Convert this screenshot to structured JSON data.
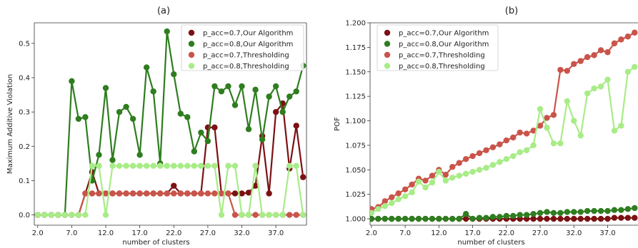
{
  "colors": {
    "dark_red": "#7b1113",
    "dark_green": "#2e7d1f",
    "light_red": "#c9544a",
    "light_green": "#a8ec87"
  },
  "chart_data": [
    {
      "type": "line",
      "title": "(a)",
      "xlabel": "number of clusters",
      "ylabel": "Maximum Additive Violation",
      "xlim": [
        1.5,
        41.5
      ],
      "ylim": [
        -0.03,
        0.56
      ],
      "xticks": [
        "2.0",
        "7.0",
        "12.0",
        "17.0",
        "22.0",
        "27.0",
        "32.0",
        "37.0"
      ],
      "yticks": [
        "0.0",
        "0.1",
        "0.2",
        "0.3",
        "0.4",
        "0.5"
      ],
      "grid": false,
      "legend": "top-right",
      "x": [
        2,
        3,
        4,
        5,
        6,
        7,
        8,
        9,
        10,
        11,
        12,
        13,
        14,
        15,
        16,
        17,
        18,
        19,
        20,
        21,
        22,
        23,
        24,
        25,
        26,
        27,
        28,
        29,
        30,
        31,
        32,
        33,
        34,
        35,
        36,
        37,
        38,
        39,
        40,
        41
      ],
      "series": [
        {
          "name": "p_acc=0.7,Our Algorithm",
          "color": "#7b1113",
          "values": [
            0,
            0,
            0,
            0,
            0,
            0,
            0,
            0.0625,
            0.125,
            0.0625,
            0.0625,
            0.0625,
            0.0625,
            0.0625,
            0.0625,
            0.0625,
            0.0625,
            0.0625,
            0.0625,
            0.0625,
            0.085,
            0.0625,
            0.0625,
            0.0625,
            0.0625,
            0.255,
            0.255,
            0.0625,
            0.0625,
            0.0625,
            0.0625,
            0.065,
            0.085,
            0.23,
            0.0625,
            0.3,
            0.325,
            0.135,
            0.26,
            0.11
          ]
        },
        {
          "name": "p_acc=0.8,Our Algorithm",
          "color": "#2e7d1f",
          "values": [
            0,
            0,
            0,
            0,
            0,
            0.39,
            0.28,
            0.285,
            0.1,
            0.175,
            0.37,
            0.16,
            0.3,
            0.315,
            0.28,
            0.175,
            0.43,
            0.36,
            0.15,
            0.535,
            0.41,
            0.295,
            0.285,
            0.185,
            0.24,
            0.215,
            0.375,
            0.36,
            0.375,
            0.32,
            0.375,
            0.25,
            0.365,
            0.22,
            0.345,
            0.375,
            0.3,
            0.345,
            0.36,
            0.435
          ]
        },
        {
          "name": "p_acc=0.7,Thresholding",
          "color": "#c9544a",
          "values": [
            0,
            0,
            0,
            0,
            0,
            0,
            0,
            0.0625,
            0.0625,
            0.0625,
            0.0625,
            0.0625,
            0.0625,
            0.0625,
            0.0625,
            0.0625,
            0.0625,
            0.0625,
            0.0625,
            0.0625,
            0.0625,
            0.0625,
            0.0625,
            0.0625,
            0.0625,
            0.0625,
            0.0625,
            0.0625,
            0.0625,
            0,
            0,
            0,
            0,
            0,
            0,
            0,
            0,
            0,
            0,
            0
          ]
        },
        {
          "name": "p_acc=0.8,Thresholding",
          "color": "#a8ec87",
          "values": [
            0,
            0,
            0,
            0,
            0,
            0,
            0,
            0,
            0.143,
            0.143,
            0,
            0.143,
            0.143,
            0.143,
            0.143,
            0.143,
            0.143,
            0.143,
            0.143,
            0.143,
            0.143,
            0.143,
            0.143,
            0.143,
            0.143,
            0.143,
            0.143,
            0,
            0.143,
            0.143,
            0,
            0,
            0.143,
            0,
            0,
            0,
            0,
            0.143,
            0.143,
            0
          ]
        }
      ]
    },
    {
      "type": "line",
      "title": "(b)",
      "xlabel": "number of clusters",
      "ylabel": "POF",
      "xlim": [
        1.8,
        41.5
      ],
      "ylim": [
        0.9935,
        1.2
      ],
      "xticks": [
        "2.0",
        "7.0",
        "12.0",
        "17.0",
        "22.0",
        "27.0",
        "32.0",
        "37.0"
      ],
      "yticks": [
        "1.000",
        "1.025",
        "1.050",
        "1.075",
        "1.100",
        "1.125",
        "1.150",
        "1.175",
        "1.200"
      ],
      "grid": false,
      "legend": "top-left",
      "x": [
        2,
        3,
        4,
        5,
        6,
        7,
        8,
        9,
        10,
        11,
        12,
        13,
        14,
        15,
        16,
        17,
        18,
        19,
        20,
        21,
        22,
        23,
        24,
        25,
        26,
        27,
        28,
        29,
        30,
        31,
        32,
        33,
        34,
        35,
        36,
        37,
        38,
        39,
        40,
        41
      ],
      "series": [
        {
          "name": "p_acc=0.7,Our Algorithm",
          "color": "#7b1113",
          "values": [
            1.0,
            1.0,
            1.0,
            1.0,
            1.0,
            1.0,
            1.0,
            1.0,
            1.0,
            1.0,
            1.0,
            1.0,
            1.0,
            1.0,
            1.0,
            1.0,
            1.0,
            1.0,
            1.0,
            1.0,
            1.0,
            1.0,
            1.0,
            1.0,
            1.0,
            1.0,
            1.0,
            1.0,
            1.0,
            1.0,
            1.0,
            1.0,
            1.0,
            1.0,
            1.0,
            1.0,
            1.001,
            1.001,
            1.001,
            1.001
          ]
        },
        {
          "name": "p_acc=0.8,Our Algorithm",
          "color": "#2e7d1f",
          "values": [
            1.0,
            1.0,
            1.0,
            1.0,
            1.0,
            1.0,
            1.0,
            1.0,
            1.0,
            1.0,
            1.0,
            1.0,
            1.0,
            1.0,
            1.005,
            1.0,
            1.001,
            1.001,
            1.002,
            1.002,
            1.003,
            1.003,
            1.004,
            1.004,
            1.005,
            1.006,
            1.007,
            1.006,
            1.006,
            1.007,
            1.007,
            1.007,
            1.008,
            1.008,
            1.008,
            1.008,
            1.009,
            1.009,
            1.01,
            1.011
          ]
        },
        {
          "name": "p_acc=0.7,Thresholding",
          "color": "#c9544a",
          "values": [
            1.01,
            1.012,
            1.018,
            1.022,
            1.026,
            1.03,
            1.035,
            1.041,
            1.039,
            1.044,
            1.05,
            1.045,
            1.053,
            1.057,
            1.061,
            1.064,
            1.067,
            1.07,
            1.073,
            1.076,
            1.08,
            1.083,
            1.088,
            1.087,
            1.09,
            1.095,
            1.103,
            1.106,
            1.152,
            1.151,
            1.158,
            1.161,
            1.165,
            1.167,
            1.172,
            1.17,
            1.179,
            1.183,
            1.186,
            1.19
          ]
        },
        {
          "name": "p_acc=0.8,Thresholding",
          "color": "#a8ec87",
          "values": [
            1.006,
            1.01,
            1.013,
            1.016,
            1.02,
            1.023,
            1.027,
            1.038,
            1.032,
            1.037,
            1.048,
            1.039,
            1.042,
            1.044,
            1.046,
            1.048,
            1.05,
            1.052,
            1.055,
            1.058,
            1.061,
            1.064,
            1.068,
            1.07,
            1.075,
            1.112,
            1.093,
            1.077,
            1.077,
            1.12,
            1.1,
            1.085,
            1.128,
            1.133,
            1.135,
            1.142,
            1.09,
            1.095,
            1.15,
            1.155
          ]
        }
      ]
    }
  ]
}
